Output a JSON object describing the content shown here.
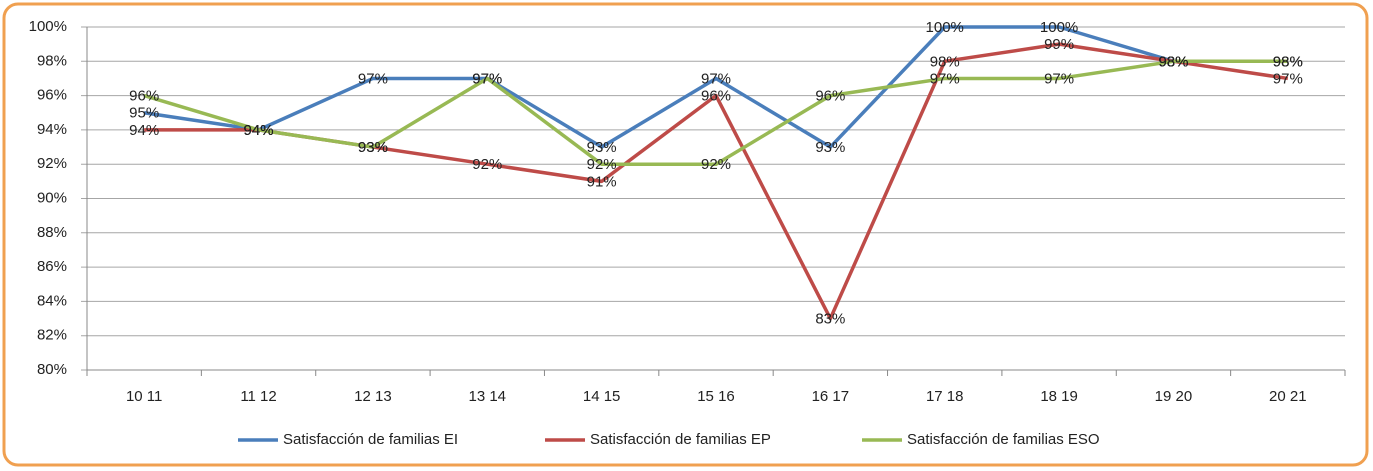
{
  "chart_data": {
    "type": "line",
    "categories": [
      "10 11",
      "11 12",
      "12 13",
      "13 14",
      "14 15",
      "15 16",
      "16 17",
      "17 18",
      "18 19",
      "19 20",
      "20 21"
    ],
    "series": [
      {
        "name": "Satisfacción de familias EI",
        "color": "#4a7ebb",
        "values": [
          95,
          94,
          97,
          97,
          93,
          97,
          93,
          100,
          100,
          98,
          98
        ],
        "value_labels": [
          "95%",
          "94%",
          "97%",
          "97%",
          "93%",
          "97%",
          "93%",
          "100%",
          "100%",
          "98%",
          "98%"
        ]
      },
      {
        "name": "Satisfacción de familias EP",
        "color": "#be4b48",
        "values": [
          94,
          94,
          93,
          92,
          91,
          96,
          83,
          98,
          99,
          98,
          97
        ],
        "value_labels": [
          "94%",
          "94%",
          "93%",
          "92%",
          "91%",
          "96%",
          "83%",
          "98%",
          "99%",
          "98%",
          "97%"
        ]
      },
      {
        "name": "Satisfacción de familias ESO",
        "color": "#98b954",
        "values": [
          96,
          94,
          93,
          97,
          92,
          92,
          96,
          97,
          97,
          98,
          98
        ],
        "value_labels": [
          "96%",
          "94%",
          "93%",
          "97%",
          "92%",
          "92%",
          "96%",
          "97%",
          "97%",
          "98%",
          "98%"
        ]
      }
    ],
    "ylim": [
      80,
      100
    ],
    "yticks": [
      {
        "value": 80,
        "label": "80%"
      },
      {
        "value": 82,
        "label": "82%"
      },
      {
        "value": 84,
        "label": "84%"
      },
      {
        "value": 86,
        "label": "86%"
      },
      {
        "value": 88,
        "label": "88%"
      },
      {
        "value": 90,
        "label": "90%"
      },
      {
        "value": 92,
        "label": "92%"
      },
      {
        "value": 94,
        "label": "94%"
      },
      {
        "value": 96,
        "label": "96%"
      },
      {
        "value": 98,
        "label": "98%"
      },
      {
        "value": 100,
        "label": "100%"
      }
    ],
    "grid": true,
    "legend": "bottom"
  }
}
